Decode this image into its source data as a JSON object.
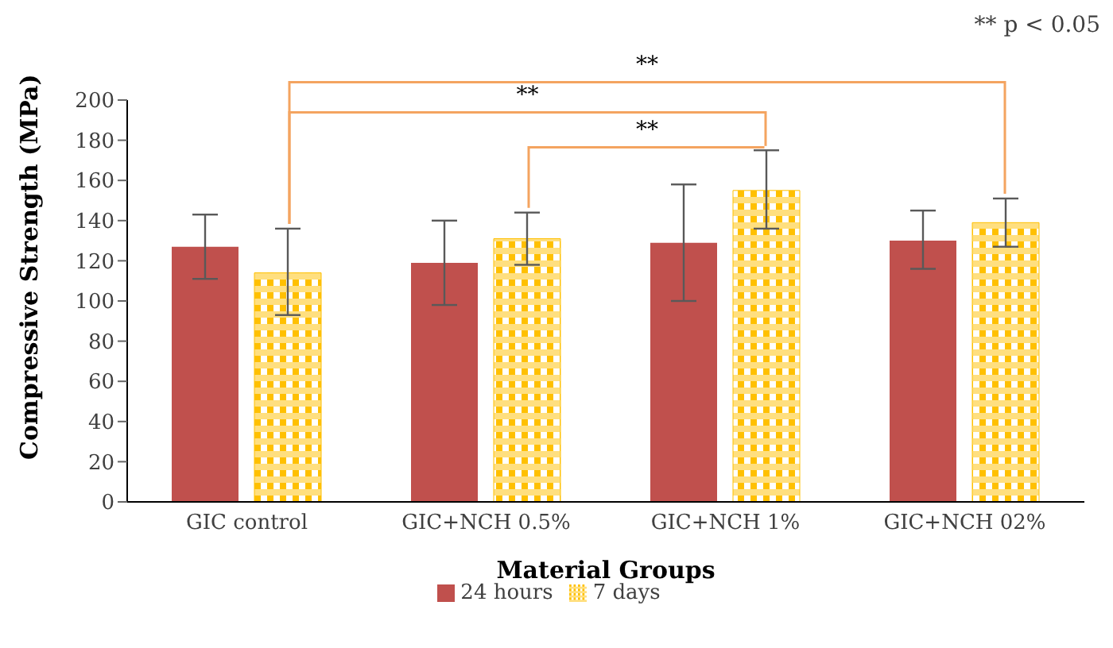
{
  "chart_data": {
    "type": "bar",
    "xlabel": "Material Groups",
    "ylabel": "Compressive Strength (MPa)",
    "categories": [
      "GIC control",
      "GIC+NCH 0.5%",
      "GIC+NCH 1%",
      "GIC+NCH 02%"
    ],
    "series": [
      {
        "name": "24 hours",
        "color": "#c0504d",
        "values": [
          127,
          119,
          129,
          130
        ],
        "errors": [
          [
            111,
            143
          ],
          [
            98,
            140
          ],
          [
            100,
            158
          ],
          [
            116,
            145
          ]
        ]
      },
      {
        "name": "7 days",
        "color": "#ffc000",
        "values": [
          114,
          131,
          155,
          139
        ],
        "errors": [
          [
            93,
            136
          ],
          [
            118,
            144
          ],
          [
            136,
            175
          ],
          [
            127,
            151
          ]
        ]
      }
    ],
    "ylim": [
      0,
      200
    ],
    "yticks": [
      0,
      20,
      40,
      60,
      80,
      100,
      120,
      140,
      160,
      180,
      200
    ],
    "legend": "bottom",
    "annotations": [
      "** p < 0.05",
      "**",
      "**",
      "**"
    ]
  }
}
